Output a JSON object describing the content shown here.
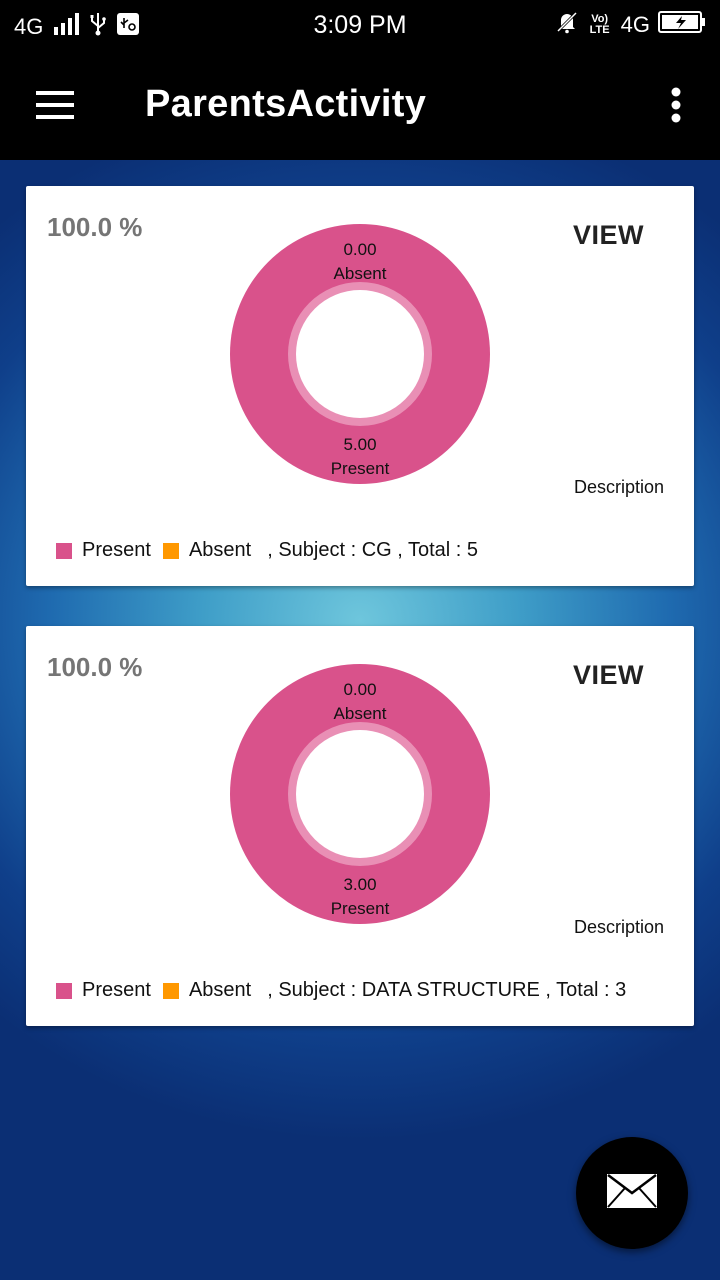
{
  "status_bar": {
    "network_left": "4G",
    "time": "3:09 PM",
    "volte": "Vo) LTE",
    "network_right": "4G"
  },
  "app_bar": {
    "title": "ParentsActivity",
    "menu_icon": "hamburger-menu-icon",
    "overflow_icon": "more-vert-icon"
  },
  "cards": [
    {
      "percent": "100.0 %",
      "view_label": "VIEW",
      "description": "Description",
      "chart": {
        "absent_value": "0.00",
        "absent_label": "Absent",
        "present_value": "5.00",
        "present_label": "Present"
      },
      "legend": {
        "present": "Present",
        "absent": "Absent",
        "info": ", Subject : CG ,  Total : 5"
      }
    },
    {
      "percent": "100.0 %",
      "view_label": "VIEW",
      "description": "Description",
      "chart": {
        "absent_value": "0.00",
        "absent_label": "Absent",
        "present_value": "3.00",
        "present_label": "Present"
      },
      "legend": {
        "present": "Present",
        "absent": "Absent",
        "info": ", Subject : DATA STRUCTURE ,  Total : 3"
      }
    }
  ],
  "chart_data": [
    {
      "type": "pie",
      "categories": [
        "Present",
        "Absent"
      ],
      "values": [
        5.0,
        0.0
      ],
      "title": "",
      "colors": [
        "#d9528b",
        "#ff9800"
      ]
    },
    {
      "type": "pie",
      "categories": [
        "Present",
        "Absent"
      ],
      "values": [
        3.0,
        0.0
      ],
      "title": "",
      "colors": [
        "#d9528b",
        "#ff9800"
      ]
    }
  ],
  "colors": {
    "present": "#d9528b",
    "absent": "#ff9800",
    "app_bar": "#000000"
  },
  "fab": {
    "icon": "email-icon"
  }
}
